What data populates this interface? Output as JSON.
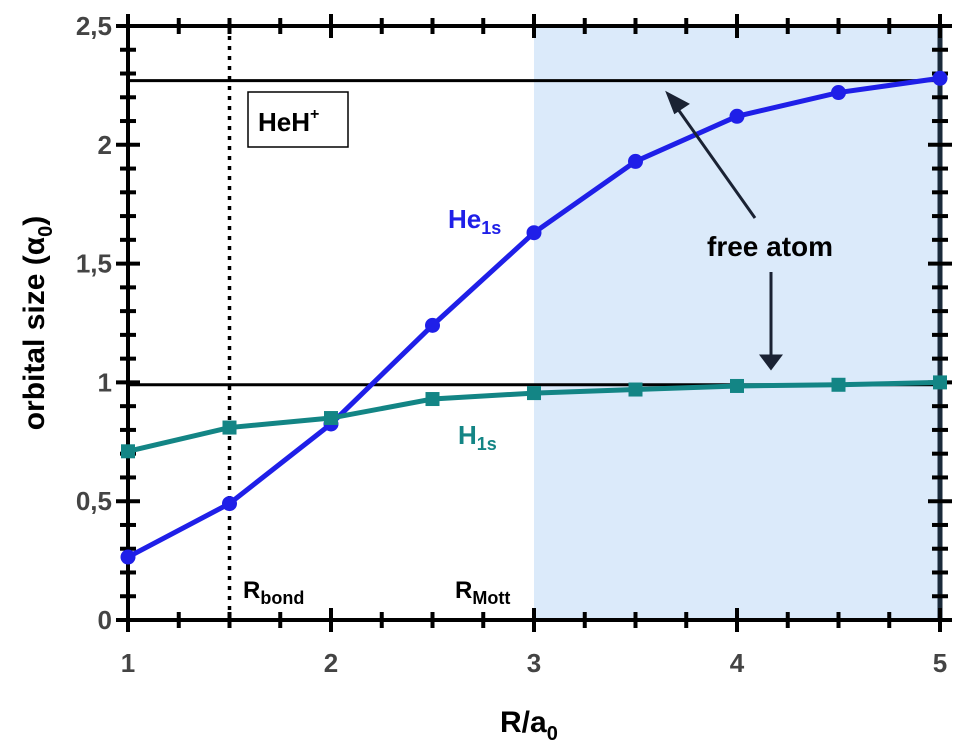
{
  "chart_data": {
    "type": "line",
    "x": [
      1,
      1.5,
      2,
      2.5,
      3,
      3.5,
      4,
      4.5,
      5
    ],
    "series": [
      {
        "name": "He",
        "name_sub": "1s",
        "color": "#1f1fe8",
        "marker": "circle",
        "values": [
          0.265,
          0.49,
          0.825,
          1.24,
          1.63,
          1.93,
          2.12,
          2.22,
          2.28
        ]
      },
      {
        "name": "H",
        "name_sub": "1s",
        "color": "#138585",
        "marker": "square",
        "values": [
          0.71,
          0.81,
          0.85,
          0.93,
          0.955,
          0.97,
          0.985,
          0.99,
          1.0
        ]
      }
    ],
    "xlim": [
      1,
      5
    ],
    "ylim": [
      0,
      2.5
    ],
    "xticks": [
      1,
      2,
      3,
      4,
      5
    ],
    "yticks": [
      0,
      {
        "value": 0.5,
        "label": "0,5"
      },
      1,
      {
        "value": 1.5,
        "label": "1,5"
      },
      2,
      {
        "value": 2.5,
        "label": "2,5"
      }
    ],
    "xminorticks": [
      1.25,
      1.5,
      1.75,
      2.25,
      2.5,
      2.75,
      3.25,
      3.5,
      3.75,
      4.25,
      4.5,
      4.75
    ],
    "yminorticks": [
      0.1,
      0.2,
      0.3,
      0.4,
      0.6,
      0.7,
      0.8,
      0.9,
      1.1,
      1.2,
      1.3,
      1.4,
      1.6,
      1.7,
      1.8,
      1.9,
      2.1,
      2.2,
      2.3,
      2.4
    ],
    "reference_lines": [
      2.27,
      0.99
    ],
    "r_bond": 1.5,
    "r_mott": 3,
    "shade_color": "#dbeafa",
    "x_label": {
      "main": "R/a",
      "sub": "0"
    },
    "y_label": {
      "main": "orbital size (α",
      "sub": "0",
      "end": ")"
    },
    "annotations": {
      "molecule": "HeH",
      "molecule_sup": "+",
      "free_atom": "free atom",
      "bond": "R",
      "bond_sub": "bond",
      "mott": "R",
      "mott_sub": "Mott"
    }
  }
}
